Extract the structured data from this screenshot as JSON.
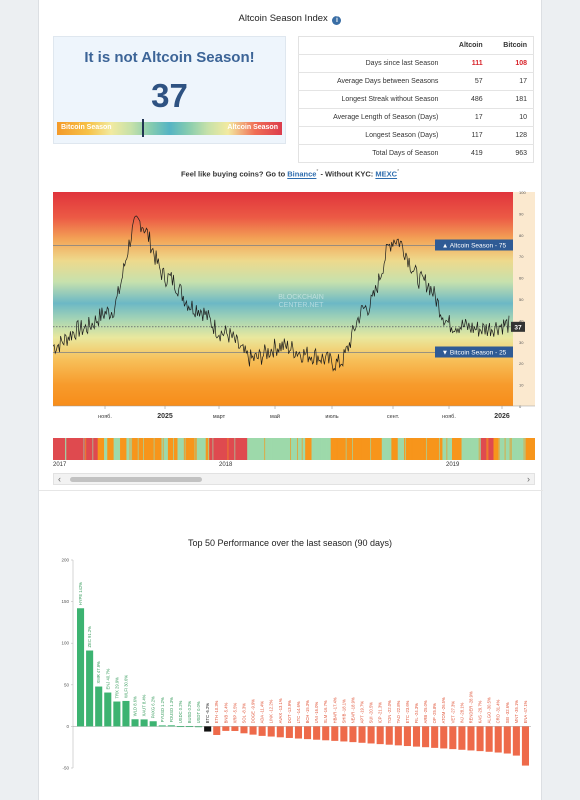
{
  "header": {
    "title": "Altcoin Season Index",
    "info_icon": "i"
  },
  "status_card": {
    "message": "It is not Altcoin Season!",
    "value": "37",
    "left_label": "Bitcoin Season",
    "right_label": "Altcoin Season",
    "gauge_value": 37
  },
  "stats_table": {
    "columns": [
      "",
      "Altcoin",
      "Bitcoin"
    ],
    "rows": [
      {
        "label": "Days since last Season",
        "altcoin": "111",
        "bitcoin": "108"
      },
      {
        "label": "Average Days between Seasons",
        "altcoin": "57",
        "bitcoin": "17"
      },
      {
        "label": "Longest Streak without Season",
        "altcoin": "486",
        "bitcoin": "181"
      },
      {
        "label": "Average Length of Season (Days)",
        "altcoin": "17",
        "bitcoin": "10"
      },
      {
        "label": "Longest Season (Days)",
        "altcoin": "117",
        "bitcoin": "128"
      },
      {
        "label": "Total Days of Season",
        "altcoin": "419",
        "bitcoin": "963"
      }
    ]
  },
  "promo": {
    "prefix": "Feel like buying coins? Go to ",
    "link1": "Binance",
    "middle": " - Without KYC: ",
    "link2": "MEXC",
    "mark": "*"
  },
  "index_chart": {
    "watermark": [
      "BLOCKCHAIN",
      "CENTER.NET"
    ],
    "altcoin_label": "▲ Altcoin Season - 75",
    "bitcoin_label": "▼ Bitcoin Season - 25",
    "current_label": "37",
    "x_ticks": [
      "нояб.",
      "2025",
      "март",
      "май",
      "июль",
      "сент.",
      "нояб.",
      "2026"
    ],
    "y_ticks": [
      "100",
      "90",
      "80",
      "70",
      "60",
      "50",
      "40",
      "30",
      "20",
      "10",
      "0"
    ]
  },
  "chart_data": [
    {
      "type": "line",
      "title": "",
      "xlabel": "",
      "ylabel": "",
      "ylim": [
        0,
        100
      ],
      "thresholds": {
        "altcoin": 75,
        "bitcoin": 25,
        "current": 37
      },
      "x_ticks": [
        "нояб.",
        "2025",
        "март",
        "май",
        "июль",
        "сент.",
        "нояб.",
        "2026"
      ],
      "x": [
        "2024-09",
        "2024-10",
        "2024-11",
        "2024-12",
        "2025-01",
        "2025-02",
        "2025-03",
        "2025-04",
        "2025-05",
        "2025-06",
        "2025-07",
        "2025-08",
        "2025-09",
        "2025-10",
        "2025-11",
        "2025-12",
        "2026-01"
      ],
      "values": [
        28,
        36,
        44,
        86,
        60,
        46,
        34,
        22,
        28,
        24,
        20,
        46,
        78,
        58,
        38,
        36,
        38
      ],
      "grid": false
    },
    {
      "type": "bar",
      "title": "Top 50 Performance over the last season (90 days)",
      "ylim": [
        -50,
        200
      ],
      "y_ticks": [
        "200",
        "150",
        "100",
        "50",
        "0",
        "-50"
      ],
      "categories": [
        "HYPE",
        "ZEC",
        "XMR",
        "ENJ",
        "TRX",
        "WLFI",
        "WLD",
        "XAUT",
        "PAXG",
        "PYUSD",
        "FDUSD",
        "USDC",
        "BUSD",
        "USDT",
        "BTC",
        "ETH",
        "BNB",
        "XRP",
        "SOL",
        "DOGE",
        "ADA",
        "LINK",
        "AVAX",
        "DOT",
        "LTC",
        "BCH",
        "UNI",
        "XLM",
        "HBAR",
        "SHIB",
        "NEAR",
        "APT",
        "SUI",
        "ICP",
        "TON",
        "TAO",
        "ETC",
        "FIL",
        "ARB",
        "OP",
        "ATOM",
        "VET",
        "INJ",
        "RENDER",
        "KAS",
        "ALGO",
        "CRO",
        "SEI",
        "MNT",
        "ENA"
      ],
      "labels": [
        "HYPE 142%",
        "ZEC 91.2%",
        "XMR 47.9%",
        "ENJ 40.7%",
        "TRX 29.9%",
        "WLFI 30.6%",
        "WLD 8.6%",
        "XAUT 8.4%",
        "PAXG 6.2%",
        "PYUSD 1.2%",
        "FDUSD 1.3%",
        "USDC 0.2%",
        "BUSD 0.2%",
        "USDT 0.0%",
        "BTC -6.2%",
        "ETH -10.3%",
        "BNB -5.4%",
        "XRP -5.5%",
        "SOL -8.3%",
        "DOGE -9.9%",
        "ADA -11.4%",
        "LINK -12.2%",
        "AVAX -13.1%",
        "DOT -13.9%",
        "LTC -14.6%",
        "BCH -15.3%",
        "UNI -16.0%",
        "XLM -16.7%",
        "HBAR -17.4%",
        "SHIB -18.1%",
        "NEAR -18.9%",
        "APT -19.7%",
        "SUI -20.5%",
        "ICP -21.3%",
        "TON -22.0%",
        "TAO -22.8%",
        "ETC -23.6%",
        "FIL -24.3%",
        "ARB -25.0%",
        "OP -25.8%",
        "ATOM -26.5%",
        "VET -27.3%",
        "INJ -28.1%",
        "RENDER -28.9%",
        "KAS -29.7%",
        "ALGO -30.5%",
        "CRO -31.4%",
        "SEI -32.6%",
        "MNT -35.1%",
        "ENA -47.1%"
      ],
      "values": [
        142,
        91.2,
        47.9,
        40.7,
        29.9,
        30.6,
        8.6,
        8.4,
        6.2,
        1.2,
        1.3,
        0.2,
        0.2,
        0.0,
        -6.2,
        -10.3,
        -5.4,
        -5.5,
        -8.3,
        -9.9,
        -11.4,
        -12.2,
        -13.1,
        -13.9,
        -14.6,
        -15.3,
        -16.0,
        -16.7,
        -17.4,
        -18.1,
        -18.9,
        -19.7,
        -20.5,
        -21.3,
        -22.0,
        -22.8,
        -23.6,
        -24.3,
        -25.0,
        -25.8,
        -26.5,
        -27.3,
        -28.1,
        -28.9,
        -29.7,
        -30.5,
        -31.4,
        -32.6,
        -35.1,
        -47.1
      ],
      "highlight": "BTC",
      "colors": {
        "positive": "#3cb371",
        "negative": "#ee6a4a",
        "highlight": "#111111"
      },
      "grid": false
    }
  ],
  "season_strip": {
    "years": [
      "2017",
      "2018",
      "2019"
    ],
    "colors": {
      "bitcoin": "#f7951b",
      "altcoin": "#df4a4f",
      "neutral": "#9dd9aa"
    },
    "segments": [
      [
        "altcoin",
        14
      ],
      [
        "bitcoin",
        2
      ],
      [
        "neutral",
        1
      ],
      [
        "bitcoin",
        2
      ],
      [
        "neutral",
        2
      ],
      [
        "bitcoin",
        2
      ],
      [
        "neutral",
        1
      ],
      [
        "bitcoin",
        10
      ],
      [
        "neutral",
        2
      ],
      [
        "bitcoin",
        3
      ],
      [
        "neutral",
        2
      ],
      [
        "bitcoin",
        4
      ],
      [
        "neutral",
        3
      ],
      [
        "bitcoin",
        1
      ],
      [
        "altcoin",
        12
      ],
      [
        "neutral",
        18
      ],
      [
        "bitcoin",
        2
      ],
      [
        "neutral",
        6
      ],
      [
        "bitcoin",
        16
      ],
      [
        "neutral",
        3
      ],
      [
        "bitcoin",
        2
      ],
      [
        "neutral",
        2
      ],
      [
        "bitcoin",
        12
      ],
      [
        "neutral",
        3
      ],
      [
        "bitcoin",
        3
      ],
      [
        "neutral",
        6
      ],
      [
        "altcoin",
        4
      ],
      [
        "bitcoin",
        2
      ],
      [
        "neutral",
        8
      ],
      [
        "bitcoin",
        3
      ]
    ]
  },
  "top_chart": {
    "title": "Top 50 Performance over the last season (90 days)"
  }
}
